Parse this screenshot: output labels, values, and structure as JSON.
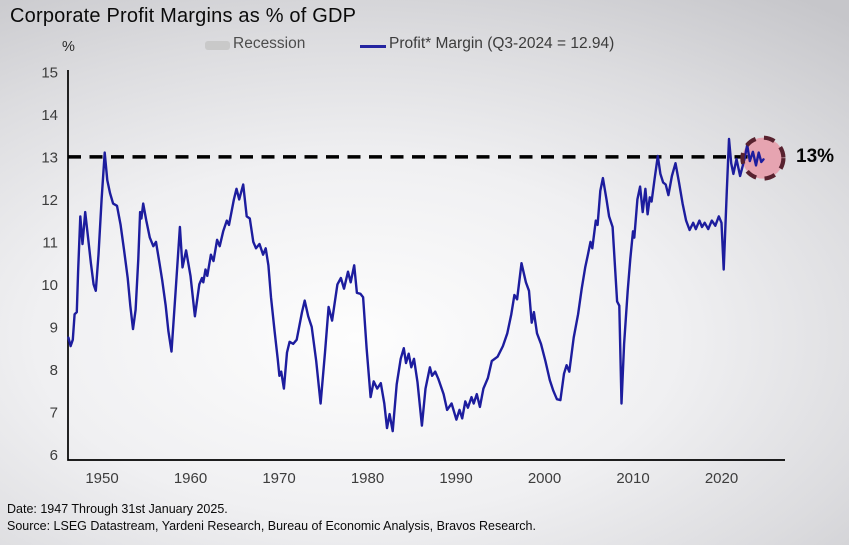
{
  "title": "Corporate Profit Margins as % of GDP",
  "legend": {
    "recession_label": "Recession",
    "profit_label": "Profit* Margin (Q3-2024 = 12.94)"
  },
  "axis": {
    "unit_label": "%"
  },
  "annotation": {
    "reference_label": "13%"
  },
  "footer": {
    "line1": "Date: 1947 Through 31st January 2025.",
    "line2": "Source: LSEG Datastream, Yardeni Research, Bureau of Economic Analysis, Bravos Research."
  },
  "colors": {
    "line": "#1d1d9e",
    "reference_line": "#000000",
    "axis": "#000000",
    "tick_text": "#3d3d3d",
    "recession_swatch": "#c9c9c9",
    "highlight_fill": "#e79aa8",
    "highlight_stroke": "#58222f"
  },
  "chart_data": {
    "type": "line",
    "title": "Corporate Profit Margins as % of GDP",
    "xlabel": "",
    "ylabel": "%",
    "ylim": [
      6,
      15
    ],
    "x_range": [
      1946.2,
      2024.75
    ],
    "grid": false,
    "legend_position": "top",
    "yticks": [
      6,
      7,
      8,
      9,
      10,
      11,
      12,
      13,
      14,
      15
    ],
    "xticks": [
      1950,
      1960,
      1970,
      1980,
      1990,
      2000,
      2010,
      2020
    ],
    "reference_line": {
      "value": 13,
      "style": "dashed",
      "label": "13%"
    },
    "highlight_circle": {
      "year": 2024.68,
      "value": 12.97,
      "radius_px": 20.5
    },
    "series": [
      {
        "name": "Profit* Margin (Q3-2024 = 12.94)",
        "last_point_label": "Q3-2024 = 12.94",
        "points": [
          [
            1946.2,
            8.75
          ],
          [
            1946.45,
            8.55
          ],
          [
            1946.7,
            8.7
          ],
          [
            1946.9,
            9.3
          ],
          [
            1947.15,
            9.35
          ],
          [
            1947.3,
            10.3
          ],
          [
            1947.55,
            11.6
          ],
          [
            1947.8,
            10.95
          ],
          [
            1948.1,
            11.7
          ],
          [
            1948.45,
            11.05
          ],
          [
            1948.75,
            10.5
          ],
          [
            1949.05,
            10.0
          ],
          [
            1949.3,
            9.85
          ],
          [
            1949.6,
            10.7
          ],
          [
            1949.95,
            12.0
          ],
          [
            1950.3,
            13.1
          ],
          [
            1950.6,
            12.45
          ],
          [
            1950.9,
            12.15
          ],
          [
            1951.25,
            11.9
          ],
          [
            1951.7,
            11.85
          ],
          [
            1952.1,
            11.4
          ],
          [
            1952.5,
            10.8
          ],
          [
            1952.9,
            10.15
          ],
          [
            1953.2,
            9.5
          ],
          [
            1953.5,
            8.95
          ],
          [
            1953.8,
            9.4
          ],
          [
            1954.1,
            10.6
          ],
          [
            1954.3,
            11.7
          ],
          [
            1954.45,
            11.55
          ],
          [
            1954.65,
            11.9
          ],
          [
            1955.0,
            11.5
          ],
          [
            1955.4,
            11.1
          ],
          [
            1955.8,
            10.9
          ],
          [
            1956.1,
            11.0
          ],
          [
            1956.5,
            10.5
          ],
          [
            1956.8,
            10.1
          ],
          [
            1957.2,
            9.5
          ],
          [
            1957.5,
            8.9
          ],
          [
            1957.85,
            8.42
          ],
          [
            1958.3,
            9.8
          ],
          [
            1958.8,
            11.35
          ],
          [
            1959.1,
            10.4
          ],
          [
            1959.5,
            10.8
          ],
          [
            1960.0,
            10.2
          ],
          [
            1960.5,
            9.25
          ],
          [
            1961.0,
            10.0
          ],
          [
            1961.3,
            10.15
          ],
          [
            1961.45,
            10.05
          ],
          [
            1961.7,
            10.35
          ],
          [
            1961.9,
            10.2
          ],
          [
            1962.3,
            10.7
          ],
          [
            1962.6,
            10.55
          ],
          [
            1963.0,
            11.05
          ],
          [
            1963.3,
            10.9
          ],
          [
            1963.7,
            11.25
          ],
          [
            1964.1,
            11.5
          ],
          [
            1964.35,
            11.4
          ],
          [
            1964.9,
            12.0
          ],
          [
            1965.2,
            12.25
          ],
          [
            1965.5,
            12.0
          ],
          [
            1965.95,
            12.35
          ],
          [
            1966.35,
            11.6
          ],
          [
            1966.7,
            11.55
          ],
          [
            1967.1,
            11.0
          ],
          [
            1967.4,
            10.85
          ],
          [
            1967.8,
            10.95
          ],
          [
            1968.2,
            10.7
          ],
          [
            1968.5,
            10.85
          ],
          [
            1968.8,
            10.45
          ],
          [
            1969.1,
            9.7
          ],
          [
            1969.5,
            8.9
          ],
          [
            1969.85,
            8.25
          ],
          [
            1970.05,
            7.85
          ],
          [
            1970.25,
            7.95
          ],
          [
            1970.55,
            7.55
          ],
          [
            1970.9,
            8.4
          ],
          [
            1971.2,
            8.65
          ],
          [
            1971.6,
            8.6
          ],
          [
            1972.0,
            8.7
          ],
          [
            1972.6,
            9.35
          ],
          [
            1972.9,
            9.62
          ],
          [
            1973.3,
            9.25
          ],
          [
            1973.7,
            9.0
          ],
          [
            1974.2,
            8.2
          ],
          [
            1974.7,
            7.2
          ],
          [
            1975.2,
            8.4
          ],
          [
            1975.6,
            9.47
          ],
          [
            1976.0,
            9.15
          ],
          [
            1976.6,
            10.0
          ],
          [
            1977.0,
            10.15
          ],
          [
            1977.35,
            9.9
          ],
          [
            1977.8,
            10.3
          ],
          [
            1978.1,
            10.05
          ],
          [
            1978.5,
            10.45
          ],
          [
            1978.8,
            9.8
          ],
          [
            1979.2,
            9.78
          ],
          [
            1979.5,
            9.7
          ],
          [
            1979.9,
            8.5
          ],
          [
            1980.35,
            7.35
          ],
          [
            1980.7,
            7.72
          ],
          [
            1981.1,
            7.55
          ],
          [
            1981.5,
            7.68
          ],
          [
            1981.9,
            7.2
          ],
          [
            1982.2,
            6.62
          ],
          [
            1982.5,
            6.95
          ],
          [
            1982.85,
            6.55
          ],
          [
            1983.3,
            7.65
          ],
          [
            1983.75,
            8.25
          ],
          [
            1984.1,
            8.5
          ],
          [
            1984.35,
            8.15
          ],
          [
            1984.65,
            8.37
          ],
          [
            1984.95,
            8.05
          ],
          [
            1985.25,
            8.25
          ],
          [
            1985.65,
            7.7
          ],
          [
            1986.15,
            6.68
          ],
          [
            1986.55,
            7.55
          ],
          [
            1987.05,
            8.05
          ],
          [
            1987.3,
            7.85
          ],
          [
            1987.65,
            7.95
          ],
          [
            1988.0,
            7.78
          ],
          [
            1988.6,
            7.42
          ],
          [
            1989.0,
            7.05
          ],
          [
            1989.5,
            7.2
          ],
          [
            1990.05,
            6.82
          ],
          [
            1990.4,
            7.05
          ],
          [
            1990.7,
            6.85
          ],
          [
            1991.05,
            7.25
          ],
          [
            1991.35,
            7.1
          ],
          [
            1991.75,
            7.35
          ],
          [
            1992.0,
            7.2
          ],
          [
            1992.35,
            7.42
          ],
          [
            1992.7,
            7.12
          ],
          [
            1993.1,
            7.55
          ],
          [
            1993.6,
            7.8
          ],
          [
            1994.05,
            8.2
          ],
          [
            1994.7,
            8.3
          ],
          [
            1995.3,
            8.55
          ],
          [
            1995.8,
            8.85
          ],
          [
            1996.25,
            9.3
          ],
          [
            1996.6,
            9.75
          ],
          [
            1996.9,
            9.65
          ],
          [
            1997.4,
            10.5
          ],
          [
            1997.9,
            10.05
          ],
          [
            1998.25,
            9.85
          ],
          [
            1998.55,
            9.1
          ],
          [
            1998.8,
            9.35
          ],
          [
            1999.15,
            8.85
          ],
          [
            1999.6,
            8.6
          ],
          [
            2000.1,
            8.2
          ],
          [
            2000.6,
            7.75
          ],
          [
            2001.0,
            7.5
          ],
          [
            2001.4,
            7.3
          ],
          [
            2001.8,
            7.28
          ],
          [
            2002.2,
            7.9
          ],
          [
            2002.5,
            8.1
          ],
          [
            2002.8,
            7.95
          ],
          [
            2003.3,
            8.75
          ],
          [
            2003.8,
            9.3
          ],
          [
            2004.2,
            9.9
          ],
          [
            2004.6,
            10.4
          ],
          [
            2004.9,
            10.7
          ],
          [
            2005.2,
            11.0
          ],
          [
            2005.4,
            10.85
          ],
          [
            2005.8,
            11.5
          ],
          [
            2006.0,
            11.4
          ],
          [
            2006.3,
            12.2
          ],
          [
            2006.6,
            12.5
          ],
          [
            2007.0,
            12.0
          ],
          [
            2007.3,
            11.6
          ],
          [
            2007.7,
            11.35
          ],
          [
            2008.0,
            10.3
          ],
          [
            2008.2,
            9.6
          ],
          [
            2008.45,
            9.5
          ],
          [
            2008.7,
            7.2
          ],
          [
            2009.0,
            8.6
          ],
          [
            2009.4,
            9.85
          ],
          [
            2009.7,
            10.6
          ],
          [
            2010.0,
            11.25
          ],
          [
            2010.15,
            11.1
          ],
          [
            2010.5,
            12.0
          ],
          [
            2010.8,
            12.3
          ],
          [
            2011.1,
            11.7
          ],
          [
            2011.4,
            12.25
          ],
          [
            2011.65,
            11.65
          ],
          [
            2011.9,
            12.05
          ],
          [
            2012.1,
            11.95
          ],
          [
            2012.45,
            12.5
          ],
          [
            2012.8,
            13.02
          ],
          [
            2013.1,
            12.6
          ],
          [
            2013.4,
            12.4
          ],
          [
            2013.7,
            12.35
          ],
          [
            2014.0,
            12.1
          ],
          [
            2014.4,
            12.55
          ],
          [
            2014.8,
            12.85
          ],
          [
            2015.2,
            12.4
          ],
          [
            2015.6,
            11.9
          ],
          [
            2016.0,
            11.5
          ],
          [
            2016.4,
            11.28
          ],
          [
            2016.8,
            11.45
          ],
          [
            2017.1,
            11.3
          ],
          [
            2017.5,
            11.5
          ],
          [
            2017.8,
            11.35
          ],
          [
            2018.1,
            11.45
          ],
          [
            2018.5,
            11.3
          ],
          [
            2018.9,
            11.5
          ],
          [
            2019.3,
            11.38
          ],
          [
            2019.7,
            11.6
          ],
          [
            2020.0,
            11.45
          ],
          [
            2020.25,
            10.35
          ],
          [
            2020.6,
            12.2
          ],
          [
            2020.85,
            13.42
          ],
          [
            2021.1,
            12.85
          ],
          [
            2021.35,
            12.6
          ],
          [
            2021.7,
            12.95
          ],
          [
            2022.1,
            12.55
          ],
          [
            2022.6,
            12.95
          ],
          [
            2022.9,
            13.28
          ],
          [
            2023.2,
            12.9
          ],
          [
            2023.55,
            13.12
          ],
          [
            2023.9,
            12.8
          ],
          [
            2024.2,
            13.1
          ],
          [
            2024.5,
            12.88
          ],
          [
            2024.75,
            12.94
          ]
        ]
      }
    ]
  }
}
